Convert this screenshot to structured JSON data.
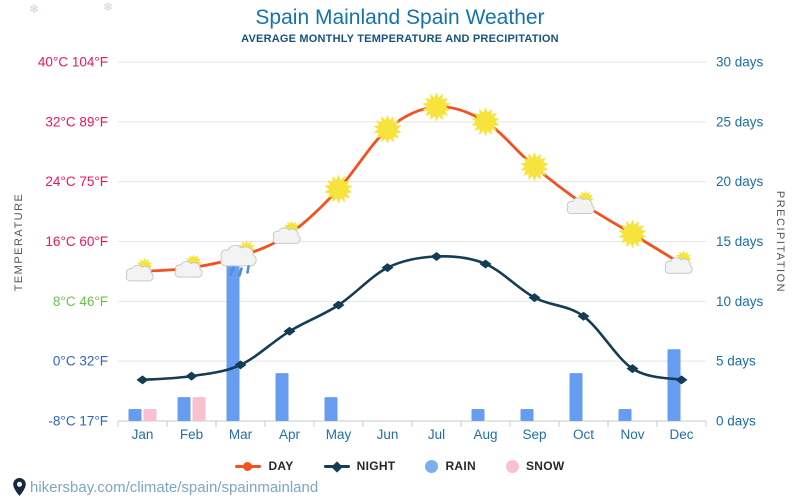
{
  "header": {
    "title": "Spain Mainland Spain Weather",
    "subtitle": "AVERAGE MONTHLY TEMPERATURE AND PRECIPITATION"
  },
  "decor_glyph": "❄",
  "axes": {
    "left_title": "TEMPERATURE",
    "right_title": "PRECIPITATION",
    "temp_ticks": [
      {
        "label": "40°C 104°F",
        "value": 40,
        "color": "#ed135e"
      },
      {
        "label": "32°C 89°F",
        "value": 32,
        "color": "#ed135e"
      },
      {
        "label": "24°C 75°F",
        "value": 24,
        "color": "#ed135e"
      },
      {
        "label": "16°C 60°F",
        "value": 16,
        "color": "#ed135e"
      },
      {
        "label": "8°C 46°F",
        "value": 8,
        "color": "#6cbf4e"
      },
      {
        "label": "0°C 32°F",
        "value": 0,
        "color": "#2c62c9"
      },
      {
        "label": "-8°C 17°F",
        "value": -8,
        "color": "#2c62c9"
      }
    ],
    "day_ticks": [
      {
        "label": "30 days",
        "value": 30
      },
      {
        "label": "25 days",
        "value": 25
      },
      {
        "label": "20 days",
        "value": 20
      },
      {
        "label": "15 days",
        "value": 15
      },
      {
        "label": "10 days",
        "value": 10
      },
      {
        "label": "5 days",
        "value": 5
      },
      {
        "label": "0 days",
        "value": 0
      }
    ]
  },
  "chart_data": {
    "type": "line+bar",
    "categories": [
      "Jan",
      "Feb",
      "Mar",
      "Apr",
      "May",
      "Jun",
      "Jul",
      "Aug",
      "Sep",
      "Oct",
      "Nov",
      "Dec"
    ],
    "temp_axis_range": [
      -8,
      40
    ],
    "precip_axis_range": [
      0,
      30
    ],
    "grid": true,
    "series": [
      {
        "name": "DAY",
        "type": "line",
        "unit": "°C",
        "values": [
          12,
          12.5,
          14,
          17,
          23,
          31,
          34,
          32,
          26,
          21,
          17,
          13
        ]
      },
      {
        "name": "NIGHT",
        "type": "line",
        "unit": "°C",
        "values": [
          -2.5,
          -2,
          -0.5,
          4,
          7.5,
          12.5,
          14,
          13,
          8.5,
          6,
          -1,
          -2.5
        ]
      },
      {
        "name": "RAIN",
        "type": "bar",
        "unit": "days",
        "values": [
          1,
          2,
          13,
          4,
          2,
          0,
          0,
          1,
          1,
          4,
          1,
          6
        ]
      },
      {
        "name": "SNOW",
        "type": "bar",
        "unit": "days",
        "values": [
          1,
          2,
          0,
          0,
          0,
          0,
          0,
          0,
          0,
          0,
          0,
          0
        ]
      }
    ],
    "month_icons": [
      "sun-cloud",
      "sun-cloud",
      "rain-sun-cloud",
      "sun-cloud",
      "sun",
      "sun",
      "sun",
      "sun",
      "sun",
      "sun-cloud",
      "sun",
      "sun-cloud"
    ]
  },
  "legend": [
    {
      "label": "DAY",
      "marker": "line-dot",
      "color": "#f4511e"
    },
    {
      "label": "NIGHT",
      "marker": "line-diamond",
      "color": "#133d55"
    },
    {
      "label": "RAIN",
      "marker": "circle",
      "color": "#7fadf3"
    },
    {
      "label": "SNOW",
      "marker": "circle",
      "color": "#f9c2d2"
    }
  ],
  "footer": {
    "url": "hikersbay.com/climate/spain/spainmainland"
  },
  "colors": {
    "day_line": "#f4511e",
    "night_line": "#133d55",
    "rain_bar": "#669df1",
    "snow_bar": "#f9c0cf",
    "month_label": "#2270a5",
    "day_axis_label": "#1a6da6",
    "axis_title": "#50555e",
    "grid": "#e5e5e5",
    "axis_line": "#c9c9c9",
    "sun": "#f6e43c",
    "cloud_fill": "#f3f3f3",
    "cloud_stroke": "#c9c9c9",
    "raindrop": "#4a90e2"
  }
}
